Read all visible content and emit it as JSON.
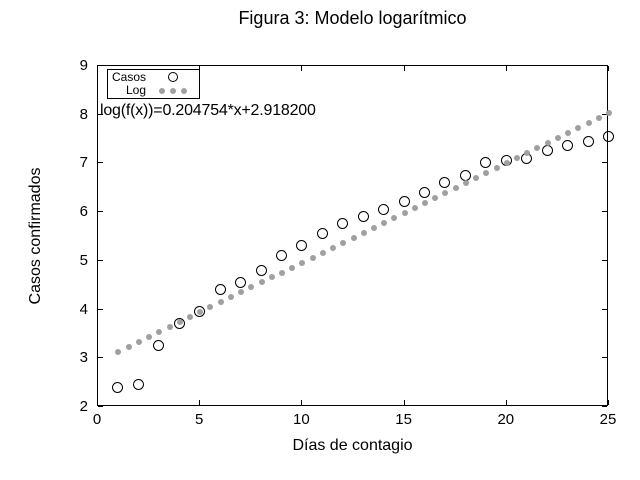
{
  "colors": {
    "foreground": "#000000",
    "fit_dots": "#a0a0a0",
    "background": "#ffffff"
  },
  "chart_data": {
    "type": "scatter",
    "title": "Figura 3: Modelo logarítmico",
    "xlabel": "Días de contagio",
    "ylabel": "Casos confirmados",
    "xlim": [
      0,
      25
    ],
    "ylim": [
      2,
      9
    ],
    "xticks": [
      0,
      5,
      10,
      15,
      20,
      25
    ],
    "yticks": [
      2,
      3,
      4,
      5,
      6,
      7,
      8,
      9
    ],
    "grid": false,
    "legend_position": "top-left",
    "annotation": "log(f(x))=0.204754*x+2.918200",
    "series": [
      {
        "name": "Casos",
        "marker": "open-circle",
        "color": "#000000",
        "x": [
          1,
          2,
          3,
          4,
          5,
          6,
          7,
          8,
          9,
          10,
          11,
          12,
          13,
          14,
          15,
          16,
          17,
          18,
          19,
          20,
          21,
          22,
          23,
          24,
          25
        ],
        "y": [
          2.4,
          2.45,
          3.25,
          3.7,
          3.95,
          4.4,
          4.55,
          4.8,
          5.1,
          5.3,
          5.55,
          5.75,
          5.9,
          6.05,
          6.2,
          6.4,
          6.6,
          6.75,
          7.0,
          7.05,
          7.1,
          7.25,
          7.35,
          7.45,
          7.55
        ]
      },
      {
        "name": "Log",
        "marker": "dot",
        "color": "#a0a0a0",
        "model": {
          "slope": 0.204754,
          "intercept": 2.9182,
          "x_start": 1,
          "x_end": 25,
          "x_step": 0.5
        }
      }
    ]
  }
}
